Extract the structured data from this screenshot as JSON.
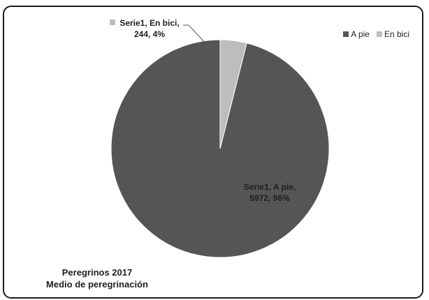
{
  "chart_data": {
    "type": "pie",
    "title": [
      "Peregrinos 2017",
      "Medio de peregrinación"
    ],
    "categories": [
      "A pie",
      "En bici"
    ],
    "series": [
      {
        "name": "Serie1",
        "values": [
          5972,
          244
        ],
        "percents": [
          96,
          4
        ],
        "labels": [
          [
            "Serie1, A pie,",
            "5972, 96%"
          ],
          [
            "Serie1, En bici,",
            "244, 4%"
          ]
        ]
      }
    ],
    "colors": [
      "#555555",
      "#bdbdbd"
    ],
    "legend": {
      "position": "top-right",
      "entries": [
        "A pie",
        "En bici"
      ]
    }
  }
}
